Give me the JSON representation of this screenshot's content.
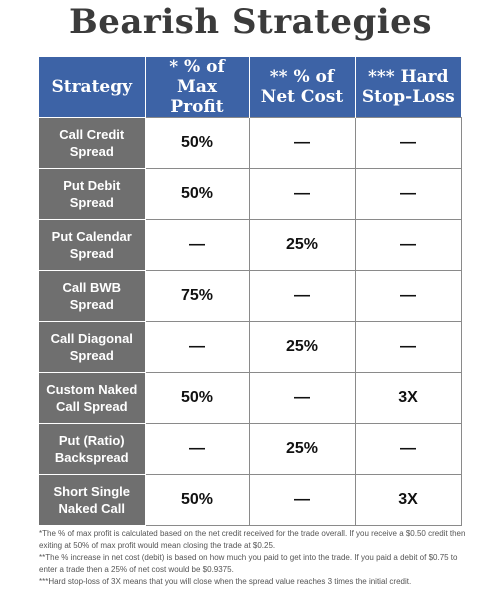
{
  "title": "Bearish Strategies",
  "header": {
    "strategy": "Strategy",
    "max_profit": [
      "* % of",
      "Max Profit"
    ],
    "net_cost": [
      "** % of",
      "Net Cost"
    ],
    "stop_loss": [
      "*** Hard",
      "Stop-Loss"
    ]
  },
  "rows": [
    {
      "name": [
        "Call Credit",
        "Spread"
      ],
      "max_profit": "50%",
      "net_cost": "—",
      "stop_loss": "—"
    },
    {
      "name": [
        "Put Debit",
        "Spread"
      ],
      "max_profit": "50%",
      "net_cost": "—",
      "stop_loss": "—"
    },
    {
      "name": [
        "Put Calendar",
        "Spread"
      ],
      "max_profit": "—",
      "net_cost": "25%",
      "stop_loss": "—"
    },
    {
      "name": [
        "Call BWB",
        "Spread"
      ],
      "max_profit": "75%",
      "net_cost": "—",
      "stop_loss": "—"
    },
    {
      "name": [
        "Call Diagonal",
        "Spread"
      ],
      "max_profit": "—",
      "net_cost": "25%",
      "stop_loss": "—"
    },
    {
      "name": [
        "Custom Naked",
        "Call Spread"
      ],
      "max_profit": "50%",
      "net_cost": "—",
      "stop_loss": "3X"
    },
    {
      "name": [
        "Put (Ratio)",
        "Backspread"
      ],
      "max_profit": "—",
      "net_cost": "25%",
      "stop_loss": "—"
    },
    {
      "name": [
        "Short Single",
        "Naked Call"
      ],
      "max_profit": "50%",
      "net_cost": "—",
      "stop_loss": "3X"
    }
  ],
  "footnotes": [
    "*The % of max profit is calculated based on the net credit received for the trade overall. If you receive a $0.50 credit then exiting at 50% of max profit would mean closing the trade at $0.25.",
    "**The % increase in net cost (debit) is based on how much you paid to get into the trade. If you paid a debit of $0.75 to enter a trade then a 25% of net cost would be $0.9375.",
    "***Hard stop-loss of 3X means that you will close when the spread value reaches 3 times the initial credit."
  ]
}
